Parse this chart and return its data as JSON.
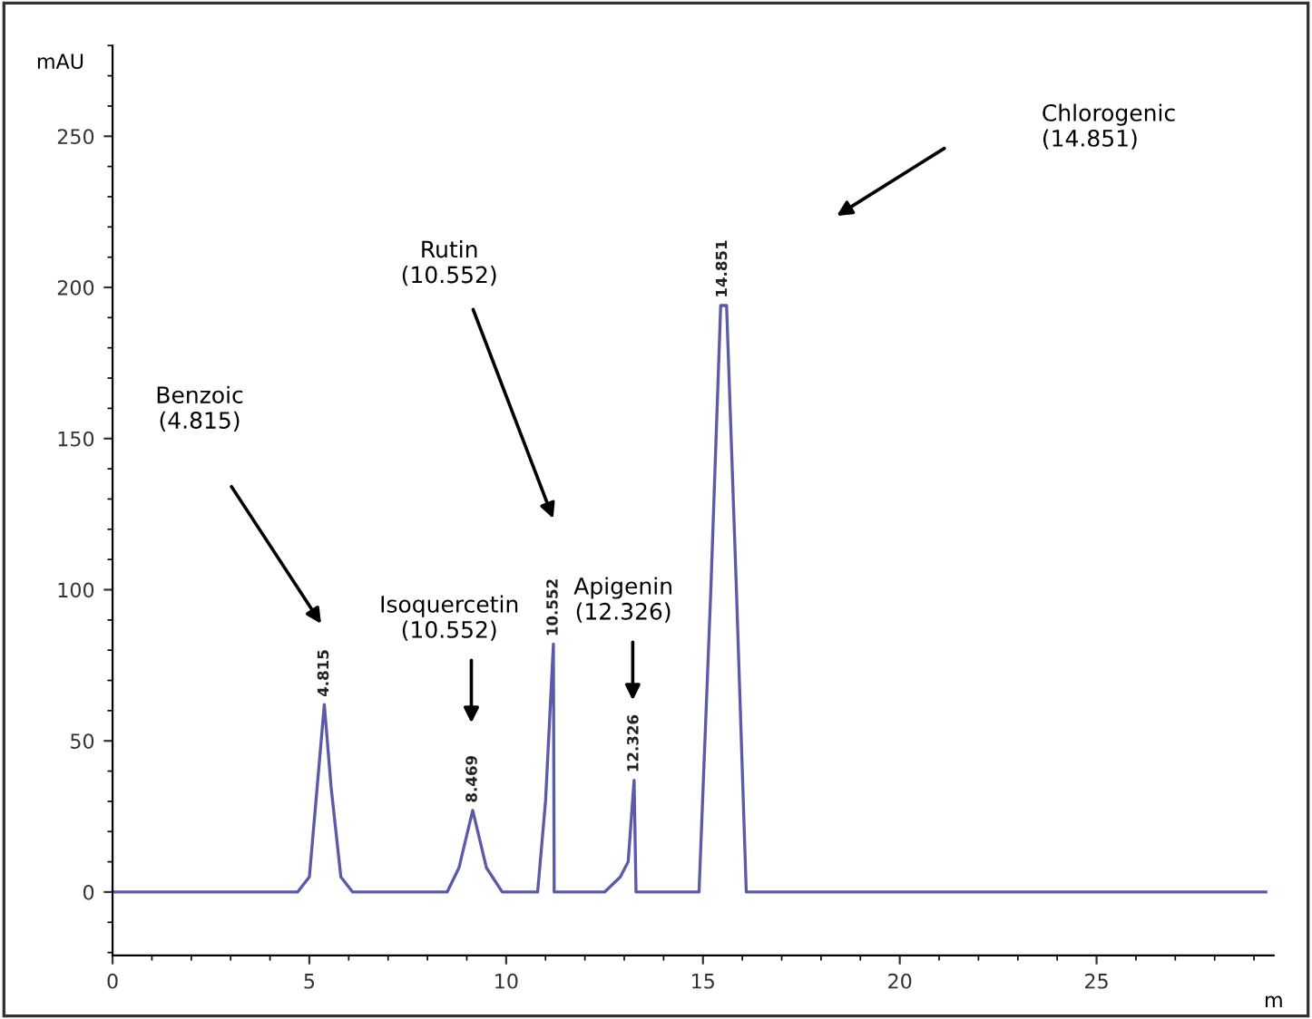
{
  "chart_data": {
    "type": "line",
    "ylabel": "mAU",
    "xlabel": "m",
    "xlim": [
      0,
      29.5
    ],
    "ylim": [
      -21,
      280
    ],
    "xticks": [
      0,
      5,
      10,
      15,
      20,
      25
    ],
    "yticks": [
      0,
      50,
      100,
      150,
      200,
      250
    ],
    "grid": false,
    "legend": false,
    "marker": "none",
    "line_style": "solid",
    "series": [
      {
        "color": "#5a5aa8",
        "x": [
          0,
          4.7,
          5.0,
          5.2,
          5.38,
          5.55,
          5.8,
          6.1,
          8.5,
          8.8,
          9.15,
          9.5,
          9.9,
          10.8,
          11.0,
          11.2,
          11.22,
          12.5,
          12.9,
          13.1,
          13.25,
          13.3,
          14.9,
          15.2,
          15.45,
          15.6,
          15.85,
          16.1,
          29.3
        ],
        "values": [
          0,
          0,
          5,
          35,
          62,
          35,
          5,
          0,
          0,
          8,
          27,
          8,
          0,
          0,
          30,
          82,
          0,
          0,
          5,
          10,
          37,
          0,
          0,
          100,
          194,
          194,
          100,
          0,
          0
        ]
      }
    ],
    "annotations": [
      {
        "text": "4.815",
        "x": 5.38,
        "y": 62
      },
      {
        "text": "8.469",
        "x": 9.15,
        "y": 27
      },
      {
        "text": "10.552",
        "x": 11.2,
        "y": 82
      },
      {
        "text": "12.326",
        "x": 13.25,
        "y": 37
      },
      {
        "text": "14.851",
        "x": 15.5,
        "y": 194
      },
      "Benzoic\n(4.815)",
      "Isoquercetin\n(10.552)",
      "Rutin\n(10.552)",
      "Apigenin\n(12.326)",
      "Chlorogenic\n(14.851)"
    ]
  }
}
